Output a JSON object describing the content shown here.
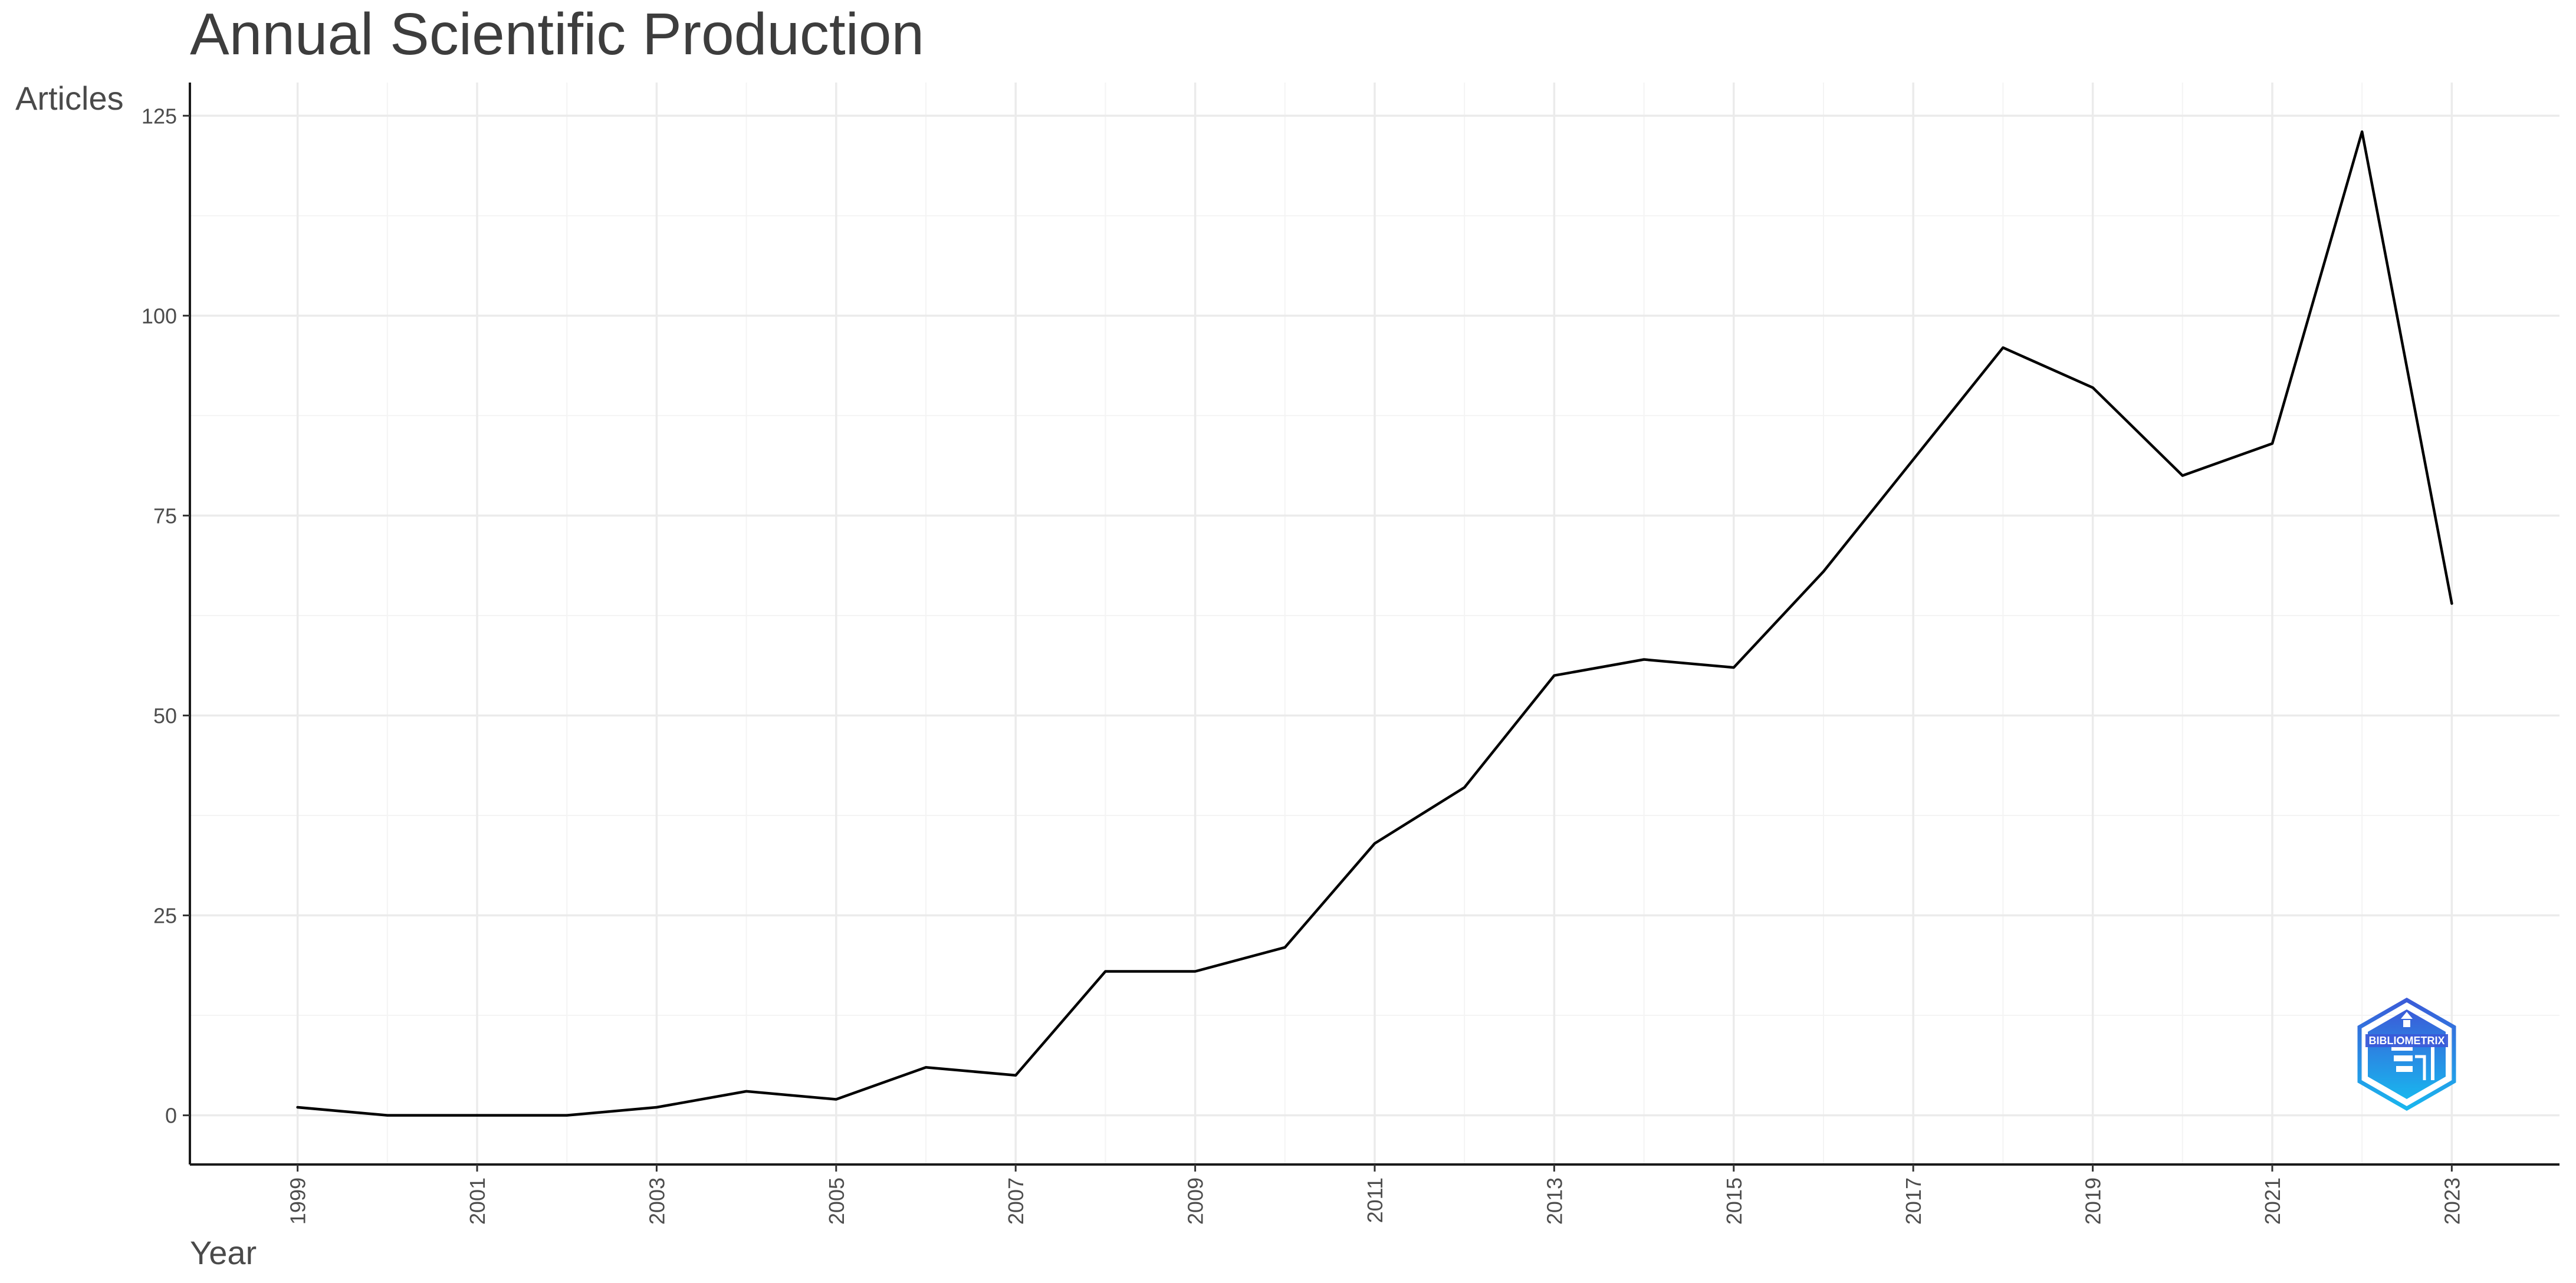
{
  "chart_data": {
    "type": "line",
    "title": "Annual Scientific Production",
    "xlabel": "Year",
    "ylabel": "Articles",
    "x": [
      1999,
      2000,
      2001,
      2002,
      2003,
      2004,
      2005,
      2006,
      2007,
      2008,
      2009,
      2010,
      2011,
      2012,
      2013,
      2014,
      2015,
      2016,
      2017,
      2018,
      2019,
      2020,
      2021,
      2022,
      2023
    ],
    "series": [
      {
        "values": [
          1,
          0,
          0,
          0,
          1,
          3,
          2,
          6,
          5,
          18,
          18,
          21,
          34,
          41,
          55,
          57,
          56,
          68,
          82,
          96,
          91,
          80,
          84,
          123,
          64
        ]
      }
    ],
    "xlim": [
      1997.8,
      2024.2
    ],
    "ylim": [
      -6.15,
      129.15
    ],
    "x_ticks": [
      1999,
      2001,
      2003,
      2005,
      2007,
      2009,
      2011,
      2013,
      2015,
      2017,
      2019,
      2021,
      2023
    ],
    "y_ticks": [
      0,
      25,
      50,
      75,
      100,
      125
    ],
    "x_tick_labels": [
      "1999",
      "2001",
      "2003",
      "2005",
      "2007",
      "2009",
      "2011",
      "2013",
      "2015",
      "2017",
      "2019",
      "2021",
      "2023"
    ],
    "y_tick_labels": [
      "0",
      "25",
      "50",
      "75",
      "100",
      "125"
    ],
    "grid": true,
    "legend": false,
    "line_color": "#000000"
  },
  "watermark": {
    "text": "BIBLIOMETRIX",
    "colors": [
      "#3b5bd8",
      "#19b6ee"
    ]
  }
}
